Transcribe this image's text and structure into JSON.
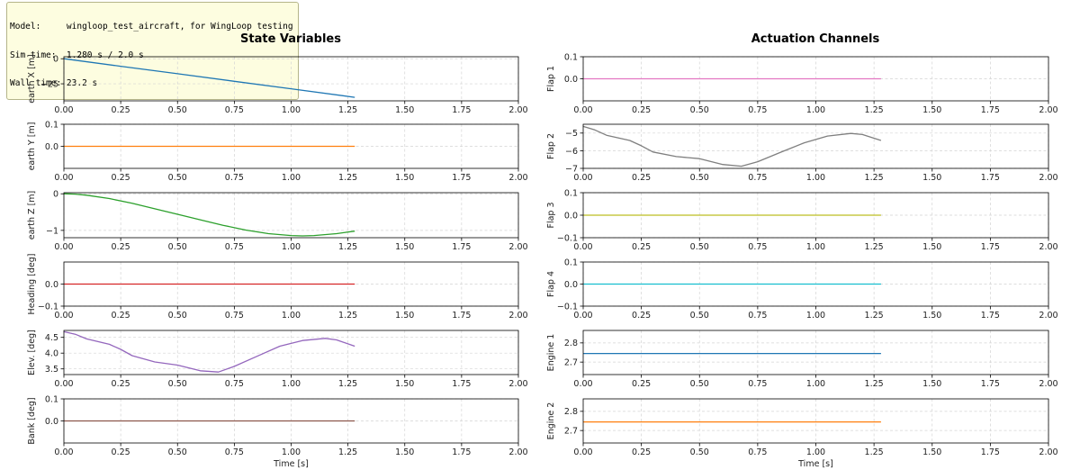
{
  "info": {
    "model_line": "Model:     wingloop_test_aircraft, for WingLoop testing",
    "sim_line": "Sim time:  1.280 s / 2.0 s",
    "wall_line": "Wall time: 23.2 s"
  },
  "chart_data": [
    {
      "type": "line",
      "title": "State Variables",
      "xlabel": "Time [s]",
      "xlim": [
        0,
        2
      ],
      "xticks": [
        "0.00",
        "0.25",
        "0.50",
        "0.75",
        "1.00",
        "1.25",
        "1.50",
        "1.75",
        "2.00"
      ],
      "grid": true,
      "panels": [
        {
          "ylabel": "earth X [m]",
          "color": "#1f77b4",
          "ylim": [
            -42,
            2
          ],
          "yticks": [
            0,
            -25
          ],
          "ytick_labels": [
            "0",
            "−25"
          ],
          "x": [
            0,
            0.25,
            0.5,
            0.75,
            1.0,
            1.28
          ],
          "y": [
            0,
            -7.5,
            -15,
            -22.5,
            -30,
            -38.5
          ]
        },
        {
          "ylabel": "earth Y [m]",
          "color": "#ff7f0e",
          "ylim": [
            -0.1,
            0.1
          ],
          "yticks": [
            0.1,
            0.0
          ],
          "ytick_labels": [
            "0.1",
            "0.0"
          ],
          "x": [
            0,
            1.28
          ],
          "y": [
            0,
            0
          ]
        },
        {
          "ylabel": "earth Z [m]",
          "color": "#2ca02c",
          "ylim": [
            -1.2,
            0.03
          ],
          "yticks": [
            0,
            -1
          ],
          "ytick_labels": [
            "0",
            "−1"
          ],
          "x": [
            0,
            0.05,
            0.1,
            0.2,
            0.3,
            0.4,
            0.5,
            0.6,
            0.7,
            0.8,
            0.9,
            1.0,
            1.05,
            1.1,
            1.2,
            1.28
          ],
          "y": [
            0,
            -0.01,
            -0.04,
            -0.13,
            -0.26,
            -0.41,
            -0.56,
            -0.71,
            -0.86,
            -0.99,
            -1.09,
            -1.14,
            -1.15,
            -1.14,
            -1.09,
            -1.02
          ]
        },
        {
          "ylabel": "Heading [deg]",
          "color": "#d62728",
          "ylim": [
            -0.1,
            0.1
          ],
          "yticks": [
            0.0,
            -0.1
          ],
          "ytick_labels": [
            "0.0",
            "−0.1"
          ],
          "x": [
            0,
            1.28
          ],
          "y": [
            0,
            0
          ]
        },
        {
          "ylabel": "Elev. [deg]",
          "color": "#9467bd",
          "ylim": [
            3.32,
            4.72
          ],
          "yticks": [
            4.5,
            4.0,
            3.5
          ],
          "ytick_labels": [
            "4.5",
            "4.0",
            "3.5"
          ],
          "x": [
            0,
            0.05,
            0.1,
            0.2,
            0.25,
            0.3,
            0.4,
            0.5,
            0.6,
            0.68,
            0.75,
            0.85,
            0.95,
            1.05,
            1.15,
            1.2,
            1.28
          ],
          "y": [
            4.68,
            4.6,
            4.45,
            4.28,
            4.12,
            3.92,
            3.72,
            3.62,
            3.44,
            3.4,
            3.58,
            3.9,
            4.22,
            4.4,
            4.47,
            4.42,
            4.22
          ]
        },
        {
          "ylabel": "Bank [deg]",
          "color": "#8c564b",
          "ylim": [
            -0.1,
            0.1
          ],
          "yticks": [
            0.1,
            0.0
          ],
          "ytick_labels": [
            "0.1",
            "0.0"
          ],
          "x": [
            0,
            1.28
          ],
          "y": [
            0,
            0
          ]
        }
      ]
    },
    {
      "type": "line",
      "title": "Actuation Channels",
      "xlabel": "Time [s]",
      "xlim": [
        0,
        2
      ],
      "xticks": [
        "0.00",
        "0.25",
        "0.50",
        "0.75",
        "1.00",
        "1.25",
        "1.50",
        "1.75",
        "2.00"
      ],
      "grid": true,
      "panels": [
        {
          "ylabel": "Flap 1",
          "color": "#e377c2",
          "ylim": [
            -0.1,
            0.1
          ],
          "yticks": [
            0.1,
            0.0
          ],
          "ytick_labels": [
            "0.1",
            "0.0"
          ],
          "x": [
            0,
            1.28
          ],
          "y": [
            0,
            0
          ]
        },
        {
          "ylabel": "Flap 2",
          "color": "#7f7f7f",
          "ylim": [
            -7,
            -4.5
          ],
          "yticks": [
            -5,
            -6,
            -7
          ],
          "ytick_labels": [
            "−5",
            "−6",
            "−7"
          ],
          "x": [
            0,
            0.05,
            0.1,
            0.2,
            0.25,
            0.3,
            0.4,
            0.5,
            0.6,
            0.68,
            0.75,
            0.85,
            0.95,
            1.05,
            1.15,
            1.2,
            1.28
          ],
          "y": [
            -4.62,
            -4.82,
            -5.12,
            -5.42,
            -5.72,
            -6.07,
            -6.33,
            -6.45,
            -6.78,
            -6.88,
            -6.62,
            -6.08,
            -5.55,
            -5.17,
            -5.02,
            -5.08,
            -5.42
          ]
        },
        {
          "ylabel": "Flap 3",
          "color": "#bcbd22",
          "ylim": [
            -0.1,
            0.1
          ],
          "yticks": [
            0.1,
            0.0,
            -0.1
          ],
          "ytick_labels": [
            "0.1",
            "0.0",
            "−0.1"
          ],
          "x": [
            0,
            1.28
          ],
          "y": [
            0,
            0
          ]
        },
        {
          "ylabel": "Flap 4",
          "color": "#17becf",
          "ylim": [
            -0.1,
            0.1
          ],
          "yticks": [
            0.1,
            0.0,
            -0.1
          ],
          "ytick_labels": [
            "0.1",
            "0.0",
            "−0.1"
          ],
          "x": [
            0,
            1.28
          ],
          "y": [
            0,
            0
          ]
        },
        {
          "ylabel": "Engine 1",
          "color": "#1f77b4",
          "ylim": [
            2.635,
            2.865
          ],
          "yticks": [
            2.8,
            2.7
          ],
          "ytick_labels": [
            "2.8",
            "2.7"
          ],
          "x": [
            0,
            1.28
          ],
          "y": [
            2.745,
            2.745
          ]
        },
        {
          "ylabel": "Engine 2",
          "color": "#ff7f0e",
          "ylim": [
            2.635,
            2.865
          ],
          "yticks": [
            2.8,
            2.7
          ],
          "ytick_labels": [
            "2.8",
            "2.7"
          ],
          "x": [
            0,
            1.28
          ],
          "y": [
            2.745,
            2.745
          ]
        }
      ]
    }
  ]
}
